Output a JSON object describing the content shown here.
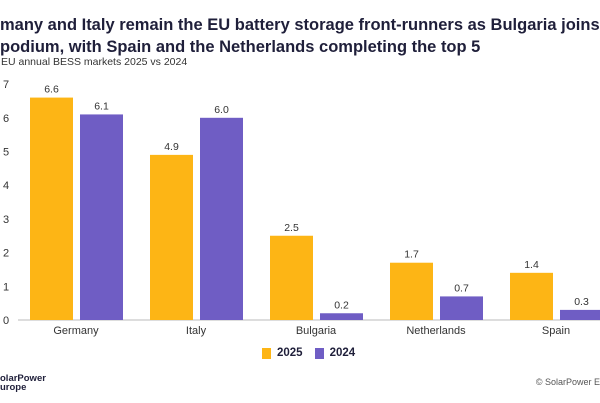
{
  "header": {
    "title_line1": "many and Italy remain the EU battery storage front-runners as Bulgaria joins",
    "title_line2": "podium, with Spain and the Netherlands completing the top 5",
    "subtitle": "EU annual BESS markets 2025 vs 2024"
  },
  "colors": {
    "2025": "#FDB515",
    "2024": "#6F5DC4"
  },
  "chart_data": {
    "type": "bar",
    "categories": [
      "Germany",
      "Italy",
      "Bulgaria",
      "Netherlands",
      "Spain"
    ],
    "series": [
      {
        "name": "2025",
        "values": [
          6.6,
          4.9,
          2.5,
          1.7,
          1.4
        ]
      },
      {
        "name": "2024",
        "values": [
          6.1,
          6.0,
          0.2,
          0.7,
          0.3
        ]
      }
    ],
    "y_ticks": [
      "0",
      "1",
      "2",
      "3",
      "4",
      "5",
      "6",
      "7"
    ],
    "ylim": [
      0,
      7
    ],
    "grid": false,
    "legend": "bottom-center"
  },
  "legend": {
    "items": [
      "2025",
      "2024"
    ]
  },
  "footer": {
    "logo": "SolarPower Europe",
    "logo_line1": "olarPower",
    "logo_line2": "urope",
    "copyright": "© SolarPower E"
  }
}
